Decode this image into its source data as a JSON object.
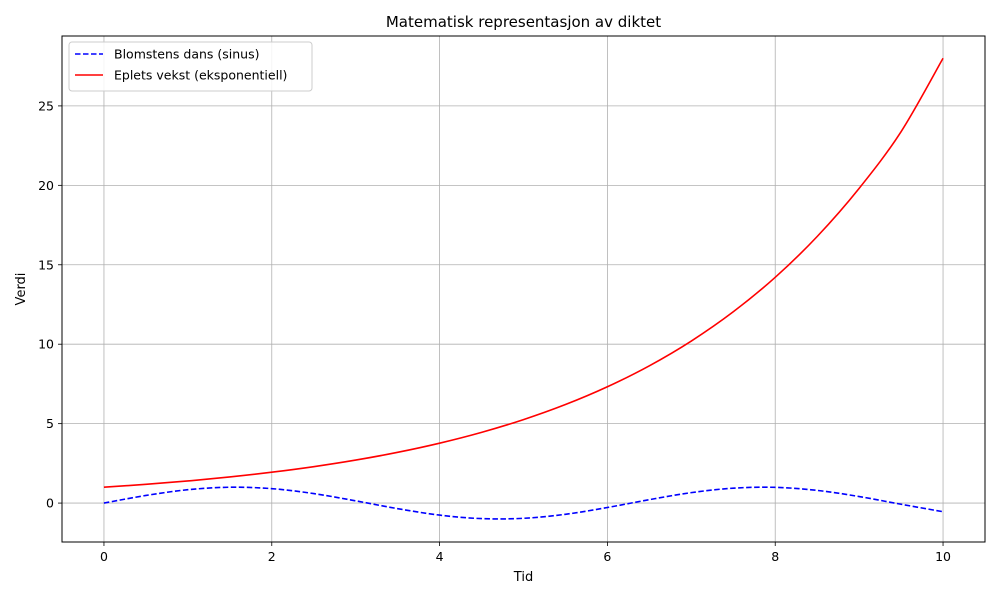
{
  "chart_data": {
    "type": "line",
    "title": "Matematisk representasjon av diktet",
    "xlabel": "Tid",
    "ylabel": "Verdi",
    "xlim": [
      -0.5,
      10.5
    ],
    "ylim": [
      -2.45,
      29.4
    ],
    "xticks": [
      0,
      2,
      4,
      6,
      8,
      10
    ],
    "yticks": [
      0,
      5,
      10,
      15,
      20,
      25
    ],
    "grid": true,
    "legend_position": "upper left",
    "series": [
      {
        "name": "Blomstens dans (sinus)",
        "color": "#0000ff",
        "style": "dashed",
        "x": [
          0,
          0.5,
          1,
          1.5,
          2,
          2.5,
          3,
          3.5,
          4,
          4.5,
          5,
          5.5,
          6,
          6.5,
          7,
          7.5,
          8,
          8.5,
          9,
          9.5,
          10
        ],
        "y": [
          0,
          0.479,
          0.841,
          0.997,
          0.909,
          0.598,
          0.141,
          -0.351,
          -0.757,
          -0.978,
          -0.959,
          -0.706,
          -0.279,
          0.215,
          0.657,
          0.938,
          0.989,
          0.798,
          0.412,
          -0.075,
          -0.544
        ]
      },
      {
        "name": "Eplets vekst (eksponentiell)",
        "color": "#ff0000",
        "style": "solid",
        "x": [
          0,
          0.5,
          1,
          1.5,
          2,
          2.5,
          3,
          3.5,
          4,
          4.5,
          5,
          5.5,
          6,
          6.5,
          7,
          7.5,
          8,
          8.5,
          9,
          9.5,
          10
        ],
        "y": [
          1,
          1.181,
          1.393,
          1.645,
          1.942,
          2.292,
          2.706,
          3.194,
          3.771,
          4.451,
          5.254,
          6.202,
          7.321,
          8.642,
          10.2,
          12.04,
          14.21,
          16.78,
          19.81,
          23.38,
          28.0
        ]
      }
    ]
  }
}
